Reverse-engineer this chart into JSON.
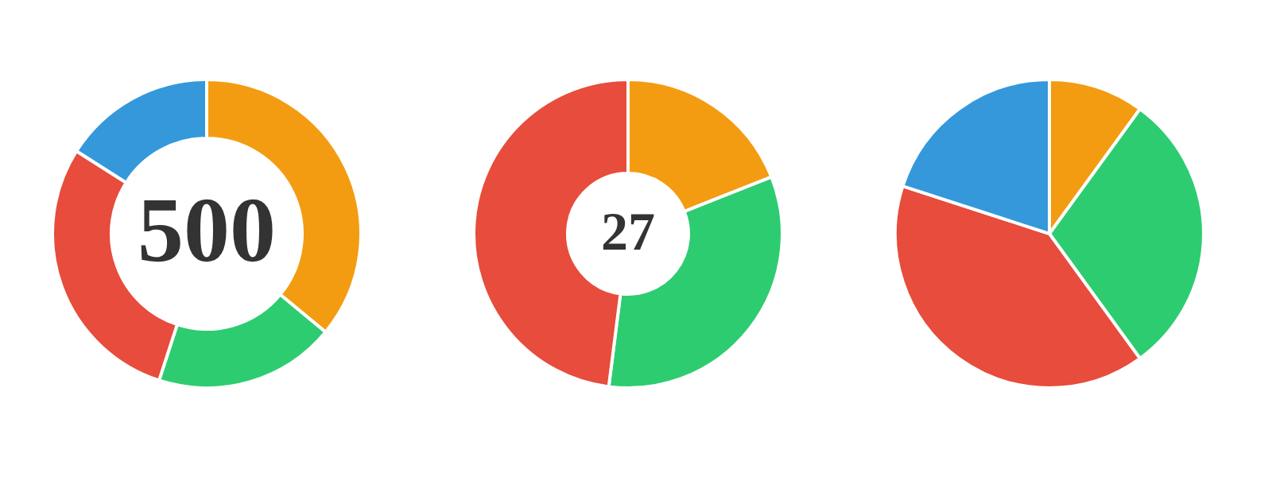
{
  "chart_data": [
    {
      "type": "donut",
      "categories": [
        null,
        null,
        null,
        null
      ],
      "values": [
        36,
        19,
        29,
        16
      ],
      "colors": [
        "#f39c12",
        "#2ecc71",
        "#e74c3c",
        "#3498db"
      ],
      "annotations": [
        "500"
      ]
    },
    {
      "type": "donut",
      "categories": [
        null,
        null,
        null
      ],
      "values": [
        19,
        33,
        48
      ],
      "colors": [
        "#f39c12",
        "#2ecc71",
        "#e74c3c"
      ],
      "annotations": [
        "27"
      ]
    },
    {
      "type": "pie",
      "categories": [
        null,
        null,
        null,
        null
      ],
      "values": [
        10,
        30,
        40,
        20
      ],
      "colors": [
        "#f39c12",
        "#2ecc71",
        "#e74c3c",
        "#3498db"
      ]
    }
  ]
}
